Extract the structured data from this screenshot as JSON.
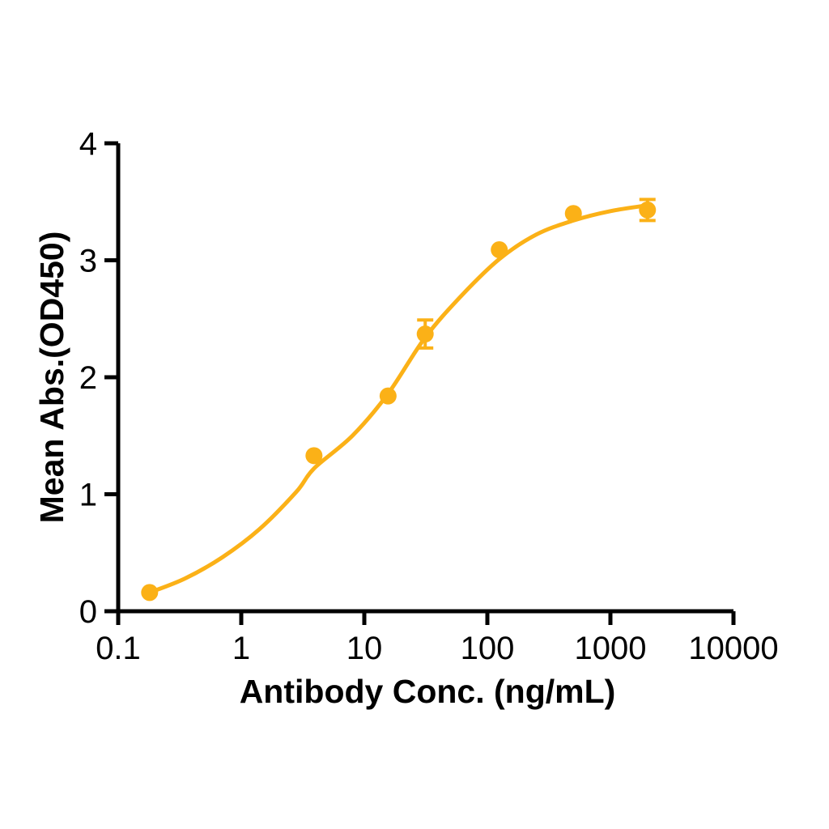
{
  "figure": {
    "background_color": "#ffffff"
  },
  "chart_data": {
    "type": "scatter",
    "subtype": "dose-response-4PL-fit",
    "title": "",
    "xlabel": "Antibody Conc. (ng/mL)",
    "ylabel": "Mean Abs.(OD450)",
    "x_scale": "log10",
    "xlim": [
      0.1,
      10000
    ],
    "ylim": [
      0,
      4
    ],
    "x_ticks": [
      0.1,
      1,
      10,
      100,
      1000,
      10000
    ],
    "x_tick_labels": [
      "0.1",
      "1",
      "10",
      "100",
      "1000",
      "10000"
    ],
    "y_ticks": [
      0,
      1,
      2,
      3,
      4
    ],
    "y_tick_labels": [
      "0",
      "1",
      "2",
      "3",
      "4"
    ],
    "grid": false,
    "legend_position": "none",
    "series_color": "#FBB117",
    "axis_color": "#000000",
    "points": [
      {
        "x": 0.18,
        "y": 0.16
      },
      {
        "x": 3.9,
        "y": 1.33
      },
      {
        "x": 15.6,
        "y": 1.84
      },
      {
        "x": 31.25,
        "y": 2.37,
        "err": 0.12
      },
      {
        "x": 125,
        "y": 3.09
      },
      {
        "x": 500,
        "y": 3.4
      },
      {
        "x": 2000,
        "y": 3.43,
        "err": 0.09
      }
    ],
    "fit_curve": [
      [
        0.18,
        0.16
      ],
      [
        0.35,
        0.28
      ],
      [
        0.7,
        0.46
      ],
      [
        1.4,
        0.7
      ],
      [
        2.8,
        1.02
      ],
      [
        3.9,
        1.22
      ],
      [
        8,
        1.5
      ],
      [
        15.6,
        1.86
      ],
      [
        31.25,
        2.34
      ],
      [
        62,
        2.7
      ],
      [
        125,
        3.01
      ],
      [
        250,
        3.22
      ],
      [
        500,
        3.34
      ],
      [
        1000,
        3.42
      ],
      [
        2000,
        3.47
      ]
    ]
  }
}
